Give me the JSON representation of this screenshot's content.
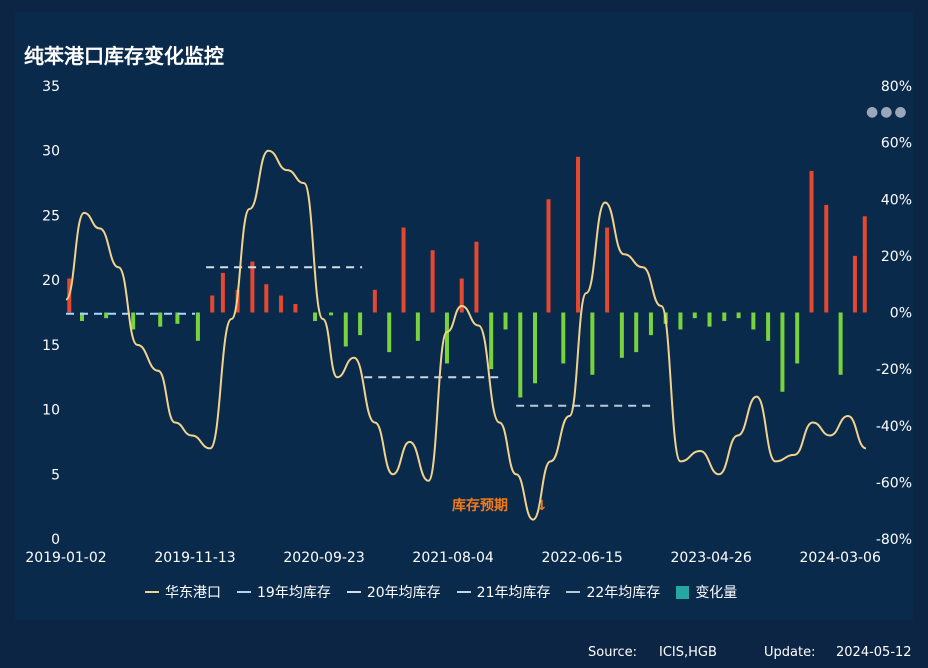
{
  "header": {
    "title": "纯苯港口库存变化监控"
  },
  "colors": {
    "background": "#0a2a4c",
    "line": "#f2d38c",
    "bar_up": "#e5472f",
    "bar_down": "#79d33a",
    "avg19": "#a7d8ff",
    "avg20": "#d6dde6",
    "avg21": "#c9d6e2",
    "avg22": "#b8c8d8",
    "change_legend": "#27a7a1"
  },
  "menu_icon": "more-dots-icon",
  "annotation": {
    "text": "库存预期",
    "arrow": "↓"
  },
  "legend": [
    "华东港口",
    "19年均库存",
    "20年均库存",
    "21年均库存",
    "22年均库存",
    "变化量"
  ],
  "footer": {
    "source_label": "Source:",
    "source_value": "ICIS,HGB",
    "update_label": "Update:",
    "update_value": "2024-05-12"
  },
  "chart_data": {
    "type": "line",
    "title": "纯苯港口库存变化监控",
    "x_tick_labels": [
      "2019-01-02",
      "2019-11-13",
      "2020-09-23",
      "2021-08-04",
      "2022-06-15",
      "2023-04-26",
      "2024-03-06"
    ],
    "x_range": [
      "2019-01-02",
      "2024-05-08"
    ],
    "y_left": {
      "ticks": [
        0,
        5,
        10,
        15,
        20,
        25,
        30,
        35
      ],
      "lim": [
        0,
        35
      ]
    },
    "y_right": {
      "ticks": [
        "80%",
        "60%",
        "40%",
        "20%",
        "0%",
        "-20%",
        "-40%",
        "-60%",
        "-80%"
      ],
      "lim": [
        -80,
        80
      ]
    },
    "grid": false,
    "legend_position": "bottom",
    "series": [
      {
        "name": "华东港口",
        "axis": "left",
        "kind": "line",
        "x": [
          "2019-01-02",
          "2019-02-15",
          "2019-03-25",
          "2019-05-10",
          "2019-06-25",
          "2019-08-15",
          "2019-09-25",
          "2019-11-05",
          "2019-12-20",
          "2020-02-10",
          "2020-03-25",
          "2020-05-10",
          "2020-06-25",
          "2020-08-05",
          "2020-09-20",
          "2020-10-25",
          "2020-12-05",
          "2021-01-25",
          "2021-03-10",
          "2021-04-20",
          "2021-06-05",
          "2021-07-20",
          "2021-08-25",
          "2021-10-05",
          "2021-11-25",
          "2022-01-05",
          "2022-02-15",
          "2022-03-30",
          "2022-05-15",
          "2022-06-25",
          "2022-08-10",
          "2022-09-25",
          "2022-11-10",
          "2022-12-25",
          "2023-02-10",
          "2023-03-30",
          "2023-05-15",
          "2023-06-30",
          "2023-08-15",
          "2023-09-30",
          "2023-11-15",
          "2023-12-30",
          "2024-02-10",
          "2024-03-25",
          "2024-05-08"
        ],
        "y": [
          18.5,
          25.2,
          24.0,
          21.0,
          15.0,
          13.0,
          9.0,
          8.0,
          7.0,
          17.0,
          25.5,
          30.0,
          28.5,
          27.5,
          17.0,
          12.5,
          14.0,
          9.0,
          5.0,
          7.5,
          4.5,
          16.0,
          18.0,
          16.5,
          9.0,
          5.0,
          1.5,
          6.0,
          9.5,
          19.0,
          26.0,
          22.0,
          21.0,
          18.0,
          6.0,
          6.8,
          5.0,
          8.0,
          11.0,
          6.0,
          6.5,
          9.0,
          8.0,
          9.5,
          7.0
        ]
      },
      {
        "name": "19年均库存",
        "axis": "left",
        "kind": "dashed",
        "x": [
          "2019-01-02",
          "2019-11-13"
        ],
        "y": [
          17.4,
          17.4
        ]
      },
      {
        "name": "20年均库存",
        "axis": "left",
        "kind": "dashed",
        "x": [
          "2019-12-10",
          "2020-12-25"
        ],
        "y": [
          21.0,
          21.0
        ]
      },
      {
        "name": "21年均库存",
        "axis": "left",
        "kind": "dashed",
        "x": [
          "2020-12-30",
          "2021-11-30"
        ],
        "y": [
          12.5,
          12.5
        ]
      },
      {
        "name": "22年均库存",
        "axis": "left",
        "kind": "dashed",
        "x": [
          "2022-01-05",
          "2022-12-10"
        ],
        "y": [
          10.3,
          10.3
        ]
      },
      {
        "name": "变化量",
        "axis": "right",
        "kind": "bar",
        "x": [
          "2019-01-10",
          "2019-02-10",
          "2019-04-10",
          "2019-06-15",
          "2019-08-20",
          "2019-10-01",
          "2019-11-20",
          "2019-12-25",
          "2020-01-20",
          "2020-02-25",
          "2020-04-01",
          "2020-05-05",
          "2020-06-10",
          "2020-07-15",
          "2020-09-01",
          "2020-10-10",
          "2020-11-15",
          "2020-12-20",
          "2021-01-25",
          "2021-03-01",
          "2021-04-05",
          "2021-05-10",
          "2021-06-15",
          "2021-07-20",
          "2021-08-25",
          "2021-09-30",
          "2021-11-05",
          "2021-12-10",
          "2022-01-15",
          "2022-02-20",
          "2022-03-25",
          "2022-04-30",
          "2022-06-05",
          "2022-07-10",
          "2022-08-15",
          "2022-09-20",
          "2022-10-25",
          "2022-11-30",
          "2023-01-05",
          "2023-02-10",
          "2023-03-17",
          "2023-04-22",
          "2023-05-28",
          "2023-07-02",
          "2023-08-07",
          "2023-09-12",
          "2023-10-17",
          "2023-11-22",
          "2023-12-27",
          "2024-02-01",
          "2024-03-07",
          "2024-04-11",
          "2024-05-05"
        ],
        "y": [
          12,
          -3,
          -2,
          -6,
          -5,
          -4,
          -10,
          6,
          14,
          8,
          18,
          10,
          6,
          3,
          -3,
          -1,
          -12,
          -8,
          8,
          -14,
          30,
          -10,
          22,
          -18,
          12,
          25,
          -20,
          -6,
          -30,
          -25,
          40,
          -18,
          55,
          -22,
          30,
          -16,
          -14,
          -8,
          -4,
          -6,
          -2,
          -5,
          -3,
          -2,
          -6,
          -10,
          -28,
          -18,
          50,
          38,
          -22,
          20,
          34
        ]
      }
    ]
  }
}
